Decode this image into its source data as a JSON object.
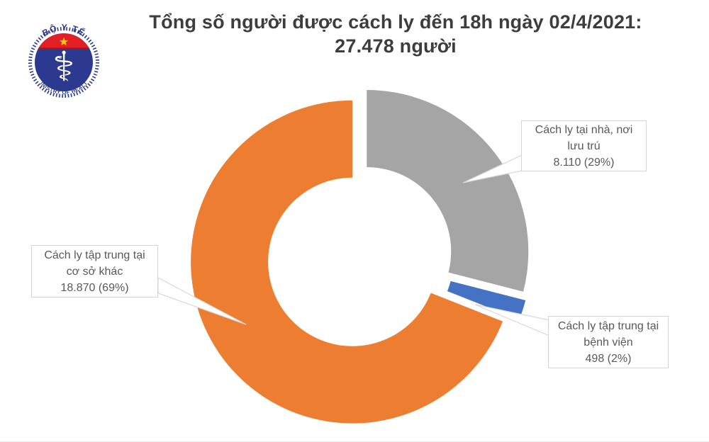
{
  "header": {
    "title_line1": "Tổng số người được cách ly đến 18h ngày 02/4/2021:",
    "title_line2": "27.478 người",
    "title_color": "#3d3d3d"
  },
  "logo": {
    "top_arc_text": "BỘ Y TẾ",
    "bottom_arc_text": "MINISTRY OF HEALTH",
    "emblem_icon": "staff-of-aesculapius-icon",
    "emblem_glyph": "⚕",
    "colors": {
      "blue": "#2B3990",
      "red": "#E31E24",
      "dark_red_band": "#9E1B1E",
      "star_yellow": "#FFD400",
      "staff_white": "#ffffff"
    }
  },
  "chart_data": {
    "type": "pie",
    "subtype": "doughnut-exploded",
    "title": "Tổng số người được cách ly đến 18h ngày 02/4/2021: 27.478 người",
    "total_value": 27478,
    "total_label": "27.478 người",
    "start_angle_deg": 0,
    "clockwise": true,
    "hole_ratio": 0.52,
    "legend_position": "callout-labels",
    "slices": [
      {
        "id": "home-quarantine",
        "label": "Cách ly tại nhà, nơi lưu trú",
        "value": 8110,
        "pct": 29,
        "value_label": "8.110 (29%)",
        "color": "#A5A5A5"
      },
      {
        "id": "hospital-quarantine",
        "label": "Cách ly tập trung tại bệnh viện",
        "value": 498,
        "pct": 2,
        "value_label": "498 (2%)",
        "color": "#4472C4"
      },
      {
        "id": "other-facility-quarantine",
        "label": "Cách ly tập trung tại cơ sở khác",
        "value": 18870,
        "pct": 69,
        "value_label": "18.870 (69%)",
        "color": "#ED7D31"
      }
    ]
  }
}
